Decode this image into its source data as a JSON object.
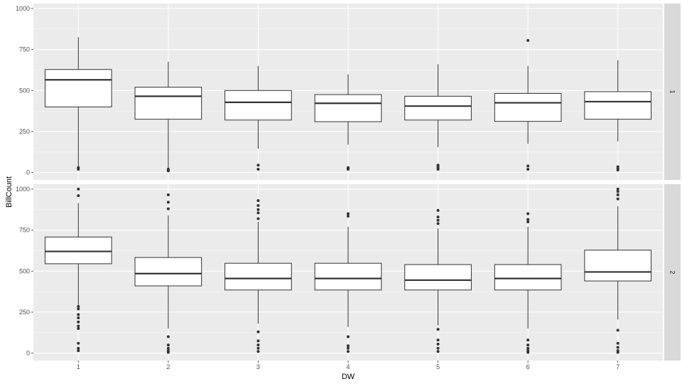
{
  "chart_data": {
    "type": "boxplot",
    "xlabel": "DW",
    "ylabel": "BillCount",
    "categories": [
      "1",
      "2",
      "3",
      "4",
      "5",
      "6",
      "7"
    ],
    "ylim": [
      -45,
      1030
    ],
    "yticks": [
      0,
      250,
      500,
      750,
      1000
    ],
    "yticklabels": [
      "0",
      "250",
      "500",
      "750",
      "1000"
    ],
    "grid": true,
    "colors": {
      "panel_bg": "#ebebeb",
      "grid_major": "#ffffff",
      "strip_bg": "#d9d9d9",
      "box_fill": "#ffffff",
      "box_stroke": "#333333",
      "outlier": "#333333"
    },
    "facets": [
      {
        "label": "1",
        "boxes": [
          {
            "x": "1",
            "q1": 400,
            "median": 565,
            "q3": 628,
            "whisker_low": 35,
            "whisker_high": 825,
            "outliers": [
              20,
              30
            ]
          },
          {
            "x": "2",
            "q1": 325,
            "median": 465,
            "q3": 520,
            "whisker_low": 25,
            "whisker_high": 675,
            "outliers": [
              10,
              15,
              20
            ]
          },
          {
            "x": "3",
            "q1": 320,
            "median": 428,
            "q3": 500,
            "whisker_low": 145,
            "whisker_high": 650,
            "outliers": [
              20,
              45
            ]
          },
          {
            "x": "4",
            "q1": 310,
            "median": 422,
            "q3": 475,
            "whisker_low": 170,
            "whisker_high": 598,
            "outliers": [
              20,
              25,
              30
            ]
          },
          {
            "x": "5",
            "q1": 320,
            "median": 405,
            "q3": 465,
            "whisker_low": 155,
            "whisker_high": 660,
            "outliers": [
              20,
              30,
              40,
              45
            ]
          },
          {
            "x": "6",
            "q1": 312,
            "median": 425,
            "q3": 482,
            "whisker_low": 175,
            "whisker_high": 650,
            "outliers": [
              805,
              40,
              20
            ]
          },
          {
            "x": "7",
            "q1": 325,
            "median": 432,
            "q3": 493,
            "whisker_low": 190,
            "whisker_high": 685,
            "outliers": [
              15,
              25,
              35
            ]
          }
        ]
      },
      {
        "label": "2",
        "boxes": [
          {
            "x": "1",
            "q1": 545,
            "median": 620,
            "q3": 708,
            "whisker_low": 295,
            "whisker_high": 915,
            "outliers": [
              1000,
              960,
              285,
              270,
              235,
              215,
              190,
              165,
              150,
              60,
              30,
              15
            ]
          },
          {
            "x": "2",
            "q1": 410,
            "median": 485,
            "q3": 583,
            "whisker_low": 150,
            "whisker_high": 840,
            "outliers": [
              965,
              920,
              880,
              100,
              50,
              30,
              15,
              5
            ]
          },
          {
            "x": "3",
            "q1": 385,
            "median": 455,
            "q3": 548,
            "whisker_low": 180,
            "whisker_high": 800,
            "outliers": [
              930,
              900,
              875,
              855,
              820,
              130,
              75,
              50,
              30,
              10
            ]
          },
          {
            "x": "4",
            "q1": 385,
            "median": 455,
            "q3": 548,
            "whisker_low": 160,
            "whisker_high": 770,
            "outliers": [
              850,
              835,
              100,
              45,
              30,
              10
            ]
          },
          {
            "x": "5",
            "q1": 385,
            "median": 445,
            "q3": 540,
            "whisker_low": 170,
            "whisker_high": 760,
            "outliers": [
              870,
              830,
              810,
              790,
              145,
              80,
              55,
              30,
              10
            ]
          },
          {
            "x": "6",
            "q1": 385,
            "median": 455,
            "q3": 540,
            "whisker_low": 150,
            "whisker_high": 770,
            "outliers": [
              850,
              815,
              800,
              80,
              50,
              30,
              15,
              5
            ]
          },
          {
            "x": "7",
            "q1": 440,
            "median": 495,
            "q3": 628,
            "whisker_low": 205,
            "whisker_high": 895,
            "outliers": [
              1000,
              985,
              965,
              940,
              140,
              60,
              35,
              15,
              5
            ]
          }
        ]
      }
    ]
  }
}
